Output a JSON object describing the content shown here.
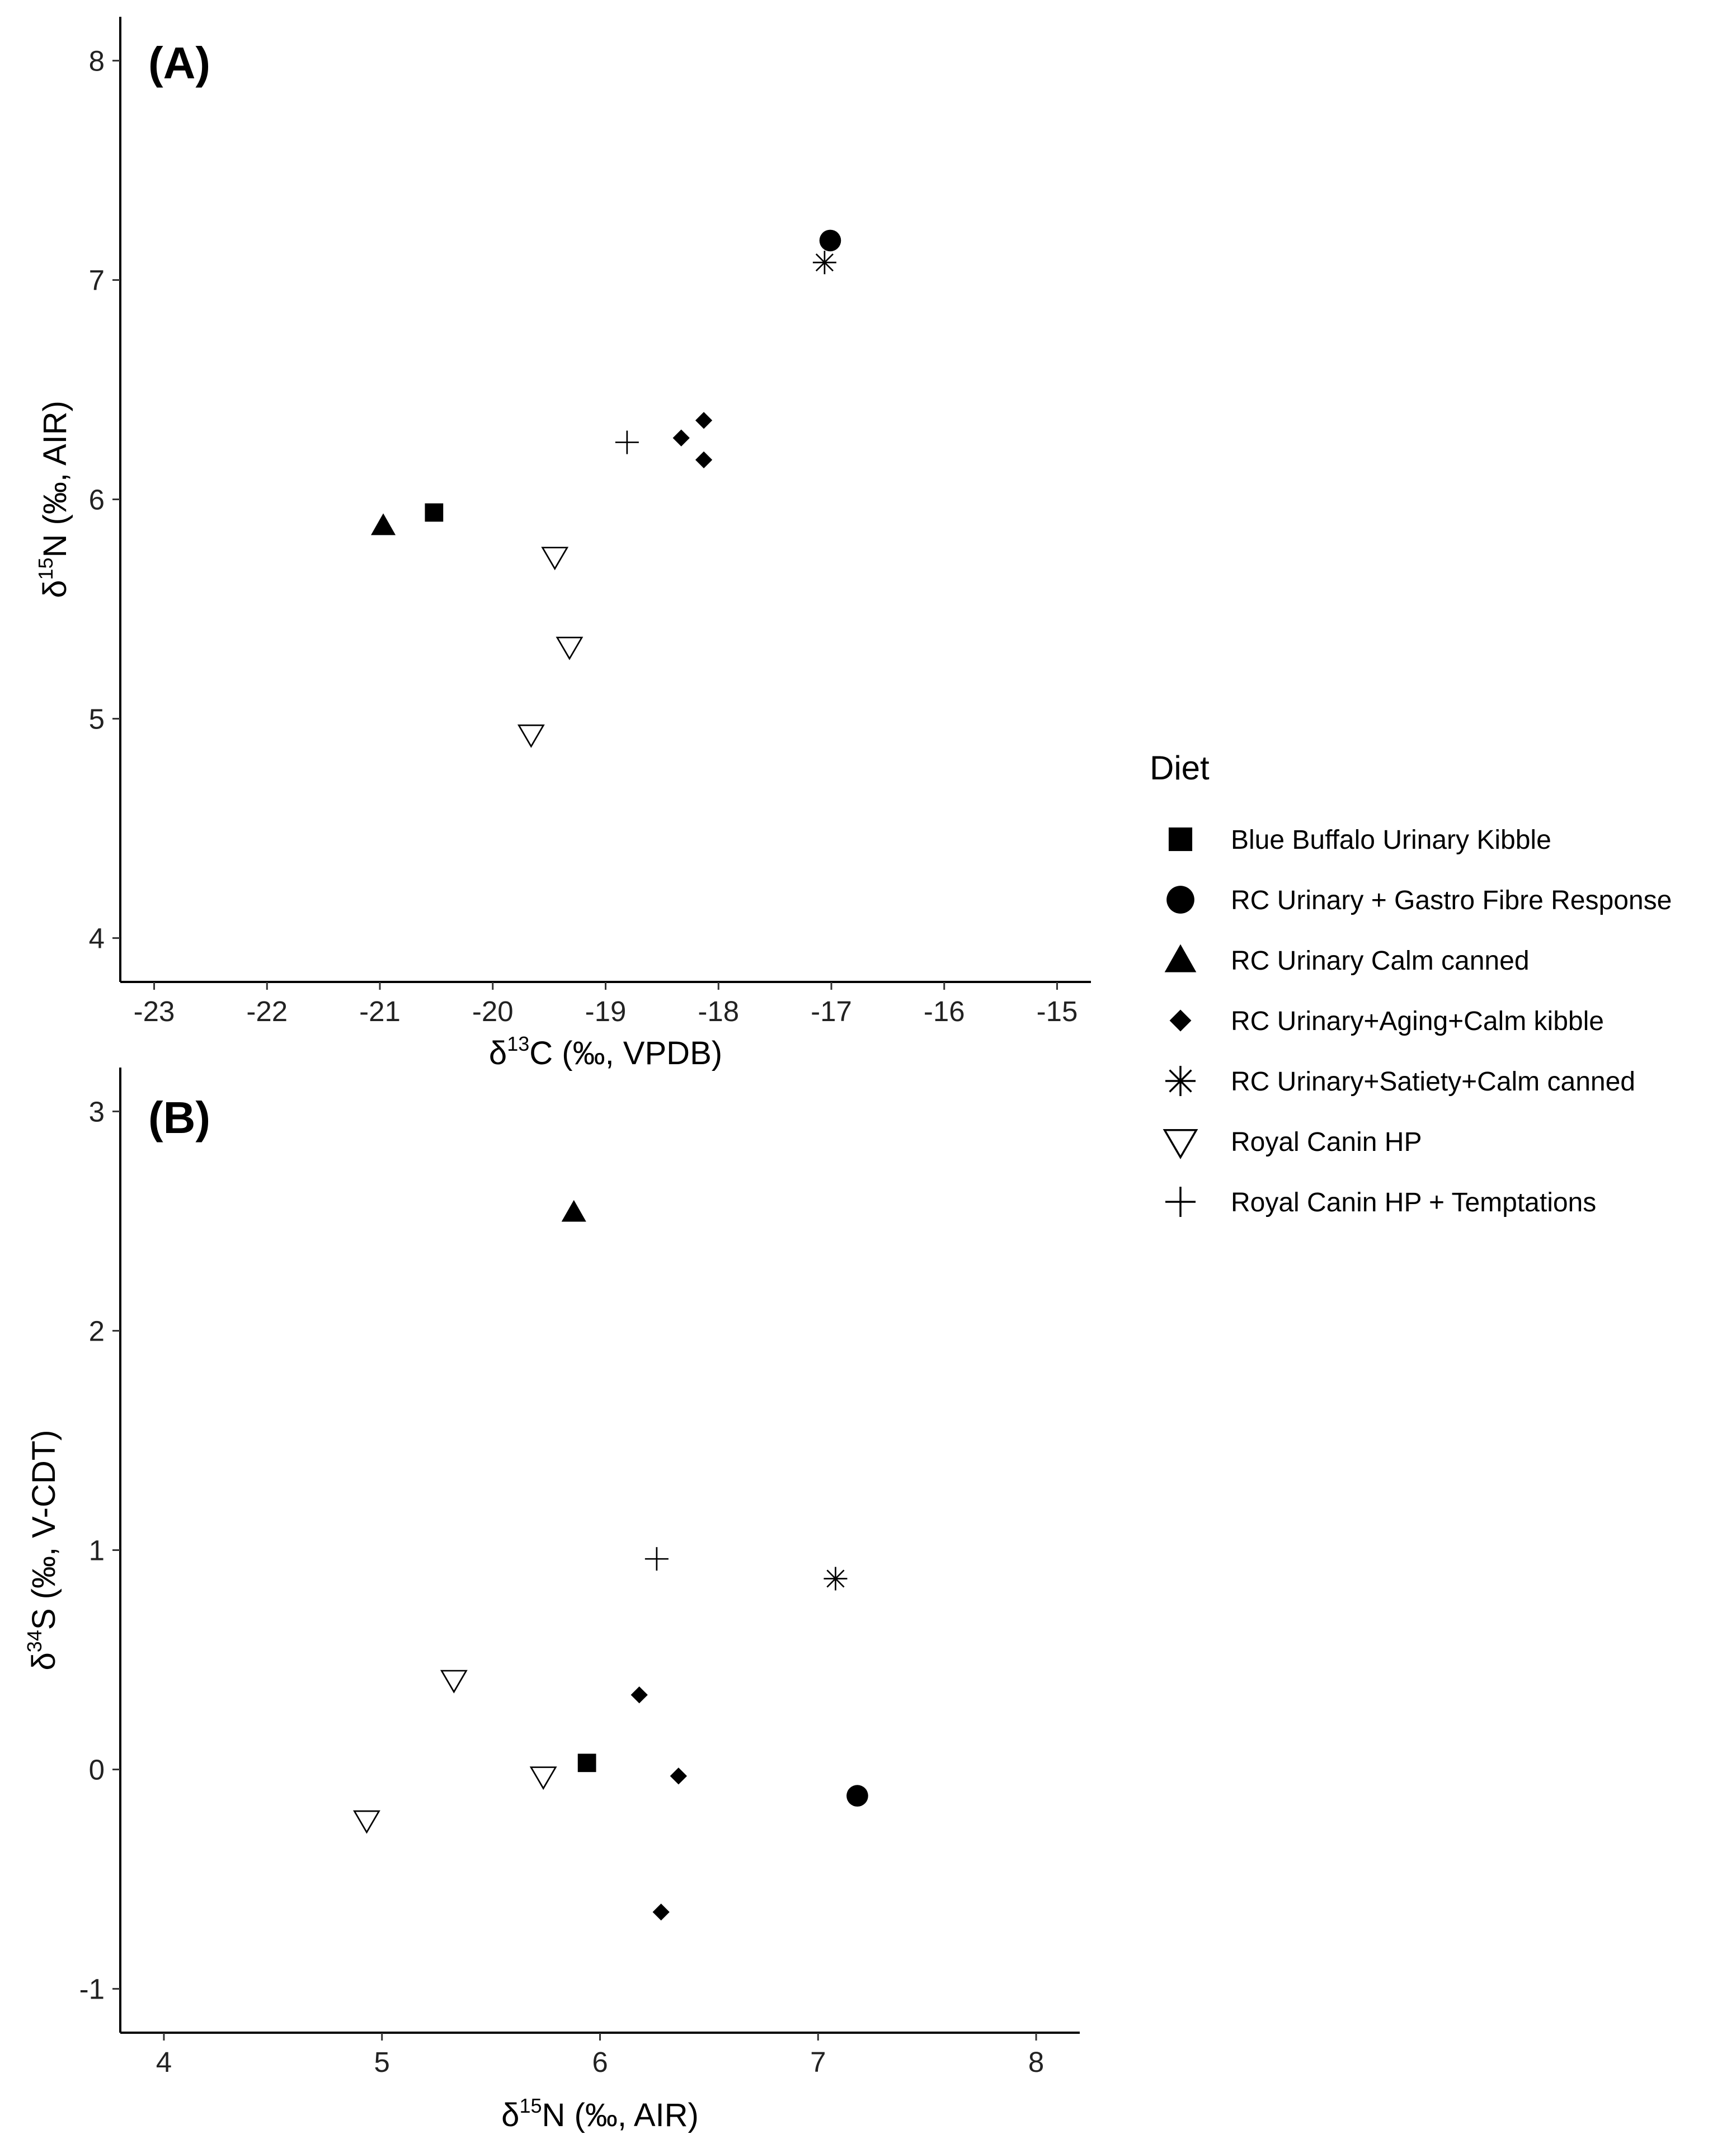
{
  "legend": {
    "title": "Diet",
    "position": "right",
    "entries": [
      {
        "key": "bb",
        "label": "Blue Buffalo Urinary Kibble",
        "shape": "square-icon"
      },
      {
        "key": "gastro",
        "label": "RC Urinary + Gastro Fibre Response",
        "shape": "circle-icon"
      },
      {
        "key": "calm_canned",
        "label": "RC Urinary Calm canned",
        "shape": "triangle-icon"
      },
      {
        "key": "aging",
        "label": "RC Urinary+Aging+Calm kibble",
        "shape": "diamond-icon"
      },
      {
        "key": "satiety",
        "label": "RC Urinary+Satiety+Calm canned",
        "shape": "asterisk-icon"
      },
      {
        "key": "hp",
        "label": "Royal Canin HP",
        "shape": "down-triangle-icon"
      },
      {
        "key": "hp_tempt",
        "label": "Royal Canin HP + Temptations",
        "shape": "plus-icon"
      }
    ]
  },
  "chart_data": [
    {
      "type": "scatter",
      "panel_label": "(A)",
      "xlabel": {
        "prefix": "δ",
        "sup": "13",
        "rest": "C (‰, VPDB)"
      },
      "ylabel": {
        "prefix": "δ",
        "sup": "15",
        "rest": "N (‰, AIR)"
      },
      "xlim": [
        -23.3,
        -14.7
      ],
      "ylim": [
        3.8,
        8.2
      ],
      "xticks": [
        -23,
        -22,
        -21,
        -20,
        -19,
        -18,
        -17,
        -16,
        -15
      ],
      "yticks": [
        4,
        5,
        6,
        7,
        8
      ],
      "xtick_labels": [
        "-23",
        "-22",
        "-21",
        "-20",
        "-19",
        "-18",
        "-17",
        "-16",
        "-15"
      ],
      "ytick_labels": [
        "4",
        "5",
        "6",
        "7",
        "8"
      ],
      "grid": false,
      "points": [
        {
          "series": "bb",
          "x": -20.52,
          "y": 5.94
        },
        {
          "series": "gastro",
          "x": -17.01,
          "y": 7.18
        },
        {
          "series": "calm_canned",
          "x": -20.97,
          "y": 5.88
        },
        {
          "series": "aging",
          "x": -18.33,
          "y": 6.28
        },
        {
          "series": "aging",
          "x": -18.13,
          "y": 6.36
        },
        {
          "series": "aging",
          "x": -18.13,
          "y": 6.18
        },
        {
          "series": "satiety",
          "x": -17.06,
          "y": 7.08
        },
        {
          "series": "hp",
          "x": -19.45,
          "y": 5.74
        },
        {
          "series": "hp",
          "x": -19.32,
          "y": 5.33
        },
        {
          "series": "hp",
          "x": -19.66,
          "y": 4.93
        },
        {
          "series": "hp_tempt",
          "x": -18.81,
          "y": 6.26
        }
      ]
    },
    {
      "type": "scatter",
      "panel_label": "(B)",
      "xlabel": {
        "prefix": "δ",
        "sup": "15",
        "rest": "N (‰, AIR)"
      },
      "ylabel": {
        "prefix": "δ",
        "sup": "34",
        "rest": "S (‰, V-CDT)"
      },
      "xlim": [
        3.8,
        8.2
      ],
      "ylim": [
        -1.2,
        3.2
      ],
      "xticks": [
        4,
        5,
        6,
        7,
        8
      ],
      "yticks": [
        -1,
        0,
        1,
        2,
        3
      ],
      "xtick_labels": [
        "4",
        "5",
        "6",
        "7",
        "8"
      ],
      "ytick_labels": [
        "-1",
        "0",
        "1",
        "2",
        "3"
      ],
      "grid": false,
      "points": [
        {
          "series": "bb",
          "x": 5.94,
          "y": 0.03
        },
        {
          "series": "gastro",
          "x": 7.18,
          "y": -0.12
        },
        {
          "series": "calm_canned",
          "x": 5.88,
          "y": 2.54
        },
        {
          "series": "aging",
          "x": 6.18,
          "y": 0.34
        },
        {
          "series": "aging",
          "x": 6.36,
          "y": -0.03
        },
        {
          "series": "aging",
          "x": 6.28,
          "y": -0.65
        },
        {
          "series": "satiety",
          "x": 7.08,
          "y": 0.87
        },
        {
          "series": "hp",
          "x": 5.74,
          "y": -0.03
        },
        {
          "series": "hp",
          "x": 5.33,
          "y": 0.41
        },
        {
          "series": "hp",
          "x": 4.93,
          "y": -0.23
        },
        {
          "series": "hp_tempt",
          "x": 6.26,
          "y": 0.96
        }
      ]
    }
  ]
}
